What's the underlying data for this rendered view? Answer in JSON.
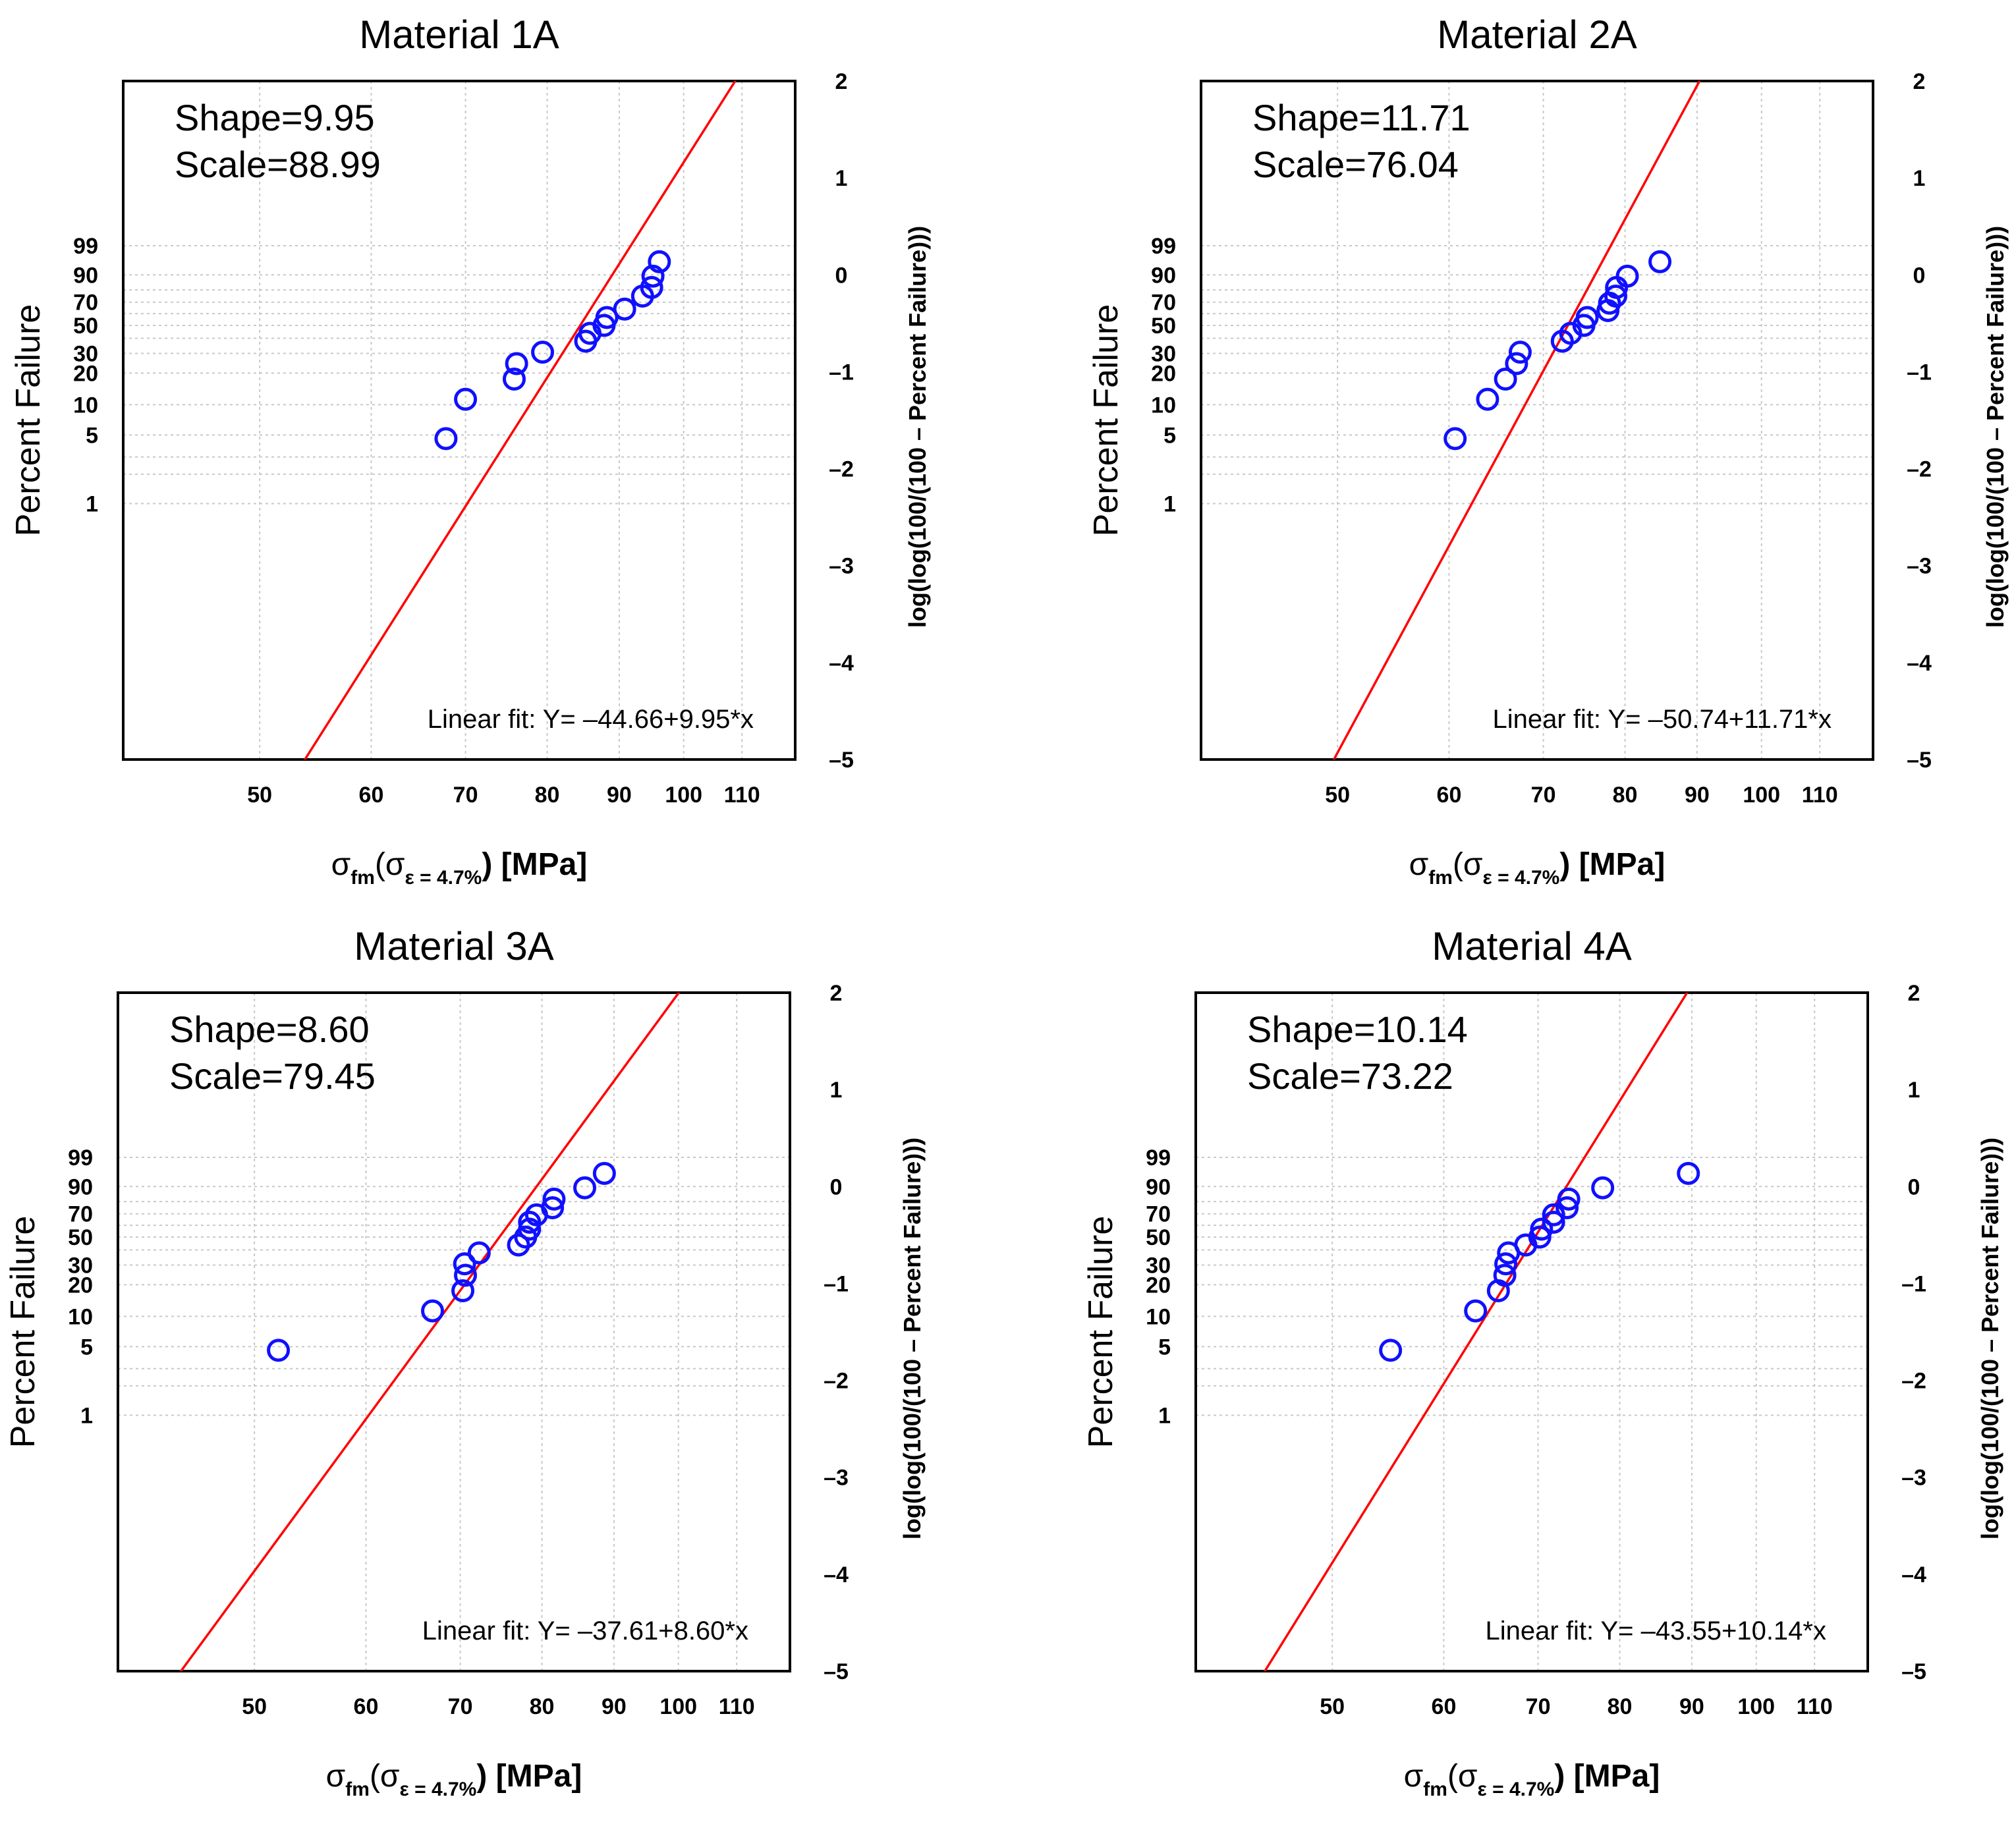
{
  "figure": {
    "y_left_label": "Percent Failure",
    "y_right_label": "log(log(100/(100 – Percent Failure)))",
    "x_label_main": "σ",
    "x_label_sub1": "fm",
    "x_label_paren_open": "(σ",
    "x_label_sub2": "ε = 4.7%",
    "x_label_close": ")",
    "x_label_unit": " [MPa]"
  },
  "chart_data": [
    {
      "type": "scatter",
      "title": "Material 1A",
      "shape_text": "Shape=9.95",
      "scale_text": "Scale=88.99",
      "fit_text": "Linear fit: Y= –44.66+9.95*x",
      "fit": {
        "intercept": -44.66,
        "slope": 9.95
      },
      "x_scale": "log10",
      "xlim": [
        40,
        120
      ],
      "x_ticks": [
        50,
        60,
        70,
        80,
        90,
        100,
        110
      ],
      "y_left_ticks": [
        1,
        5,
        10,
        20,
        30,
        50,
        70,
        90,
        99
      ],
      "y_right_ticks": [
        "2",
        "1",
        "0",
        "–1",
        "–2",
        "–3",
        "–4",
        "–5"
      ],
      "y_right_values": [
        2,
        1,
        0,
        -1,
        -2,
        -3,
        -4,
        -5
      ],
      "y_left_gridlines": [
        2,
        3,
        40,
        60,
        80
      ],
      "ylim_transformed": [
        -5,
        2
      ],
      "points": [
        [
          67.8,
          4.6
        ],
        [
          70.0,
          11.3
        ],
        [
          75.8,
          17.6
        ],
        [
          76.1,
          24.4
        ],
        [
          79.4,
          30.7
        ],
        [
          85.2,
          37.9
        ],
        [
          85.8,
          43.7
        ],
        [
          87.8,
          50.0
        ],
        [
          88.2,
          56.7
        ],
        [
          90.8,
          64.0
        ],
        [
          93.5,
          75.1
        ],
        [
          94.9,
          81.9
        ],
        [
          95.1,
          89.3
        ],
        [
          96.1,
          95.7
        ]
      ]
    },
    {
      "type": "scatter",
      "title": "Material 2A",
      "shape_text": "Shape=11.71",
      "scale_text": "Scale=76.04",
      "fit_text": "Linear fit: Y= –50.74+11.71*x",
      "fit": {
        "intercept": -50.74,
        "slope": 11.71
      },
      "x_scale": "log10",
      "xlim": [
        40,
        120
      ],
      "x_ticks": [
        50,
        60,
        70,
        80,
        90,
        100,
        110
      ],
      "y_left_ticks": [
        1,
        5,
        10,
        20,
        30,
        50,
        70,
        90,
        99
      ],
      "y_right_ticks": [
        "2",
        "1",
        "0",
        "–1",
        "–2",
        "–3",
        "–4",
        "–5"
      ],
      "y_right_values": [
        2,
        1,
        0,
        -1,
        -2,
        -3,
        -4,
        -5
      ],
      "y_left_gridlines": [
        2,
        3,
        40,
        60,
        80
      ],
      "ylim_transformed": [
        -5,
        2
      ],
      "points": [
        [
          60.6,
          4.6
        ],
        [
          63.9,
          11.3
        ],
        [
          65.8,
          17.6
        ],
        [
          67.0,
          24.4
        ],
        [
          67.4,
          30.7
        ],
        [
          72.2,
          37.9
        ],
        [
          73.2,
          43.7
        ],
        [
          74.8,
          50.0
        ],
        [
          75.2,
          56.7
        ],
        [
          77.8,
          62.7
        ],
        [
          78.0,
          69.1
        ],
        [
          78.8,
          75.1
        ],
        [
          78.9,
          81.9
        ],
        [
          80.3,
          89.3
        ],
        [
          84.7,
          95.7
        ]
      ]
    },
    {
      "type": "scatter",
      "title": "Material 3A",
      "shape_text": "Shape=8.60",
      "scale_text": "Scale=79.45",
      "fit_text": "Linear fit: Y= –37.61+8.60*x",
      "fit": {
        "intercept": -37.61,
        "slope": 8.6
      },
      "x_scale": "log10",
      "xlim": [
        40,
        120
      ],
      "x_ticks": [
        50,
        60,
        70,
        80,
        90,
        100,
        110
      ],
      "y_left_ticks": [
        1,
        5,
        10,
        20,
        30,
        50,
        70,
        90,
        99
      ],
      "y_right_ticks": [
        "2",
        "1",
        "0",
        "–1",
        "–2",
        "–3",
        "–4",
        "–5"
      ],
      "y_right_values": [
        2,
        1,
        0,
        -1,
        -2,
        -3,
        -4,
        -5
      ],
      "y_left_gridlines": [
        2,
        3,
        40,
        60,
        80
      ],
      "ylim_transformed": [
        -5,
        2
      ],
      "points": [
        [
          52.0,
          4.6
        ],
        [
          66.9,
          11.3
        ],
        [
          70.3,
          17.6
        ],
        [
          70.6,
          24.4
        ],
        [
          70.5,
          30.7
        ],
        [
          72.2,
          37.9
        ],
        [
          77.0,
          43.7
        ],
        [
          77.9,
          50.0
        ],
        [
          78.4,
          56.7
        ],
        [
          78.4,
          62.7
        ],
        [
          79.3,
          69.1
        ],
        [
          81.4,
          75.1
        ],
        [
          81.6,
          81.9
        ],
        [
          85.8,
          89.3
        ],
        [
          88.6,
          95.7
        ]
      ]
    },
    {
      "type": "scatter",
      "title": "Material 4A",
      "shape_text": "Shape=10.14",
      "scale_text": "Scale=73.22",
      "fit_text": "Linear fit: Y= –43.55+10.14*x",
      "fit": {
        "intercept": -43.55,
        "slope": 10.14
      },
      "x_scale": "log10",
      "xlim": [
        40,
        120
      ],
      "x_ticks": [
        50,
        60,
        70,
        80,
        90,
        100,
        110
      ],
      "y_left_ticks": [
        1,
        5,
        10,
        20,
        30,
        50,
        70,
        90,
        99
      ],
      "y_right_ticks": [
        "2",
        "1",
        "0",
        "–1",
        "–2",
        "–3",
        "–4",
        "–5"
      ],
      "y_right_values": [
        2,
        1,
        0,
        -1,
        -2,
        -3,
        -4,
        -5
      ],
      "y_left_gridlines": [
        2,
        3,
        40,
        60,
        80
      ],
      "ylim_transformed": [
        -5,
        2
      ],
      "points": [
        [
          55.0,
          4.6
        ],
        [
          63.2,
          11.3
        ],
        [
          65.6,
          17.6
        ],
        [
          66.3,
          24.4
        ],
        [
          66.4,
          30.7
        ],
        [
          66.7,
          37.9
        ],
        [
          68.6,
          43.7
        ],
        [
          70.2,
          50.0
        ],
        [
          70.4,
          56.7
        ],
        [
          71.8,
          62.7
        ],
        [
          71.8,
          69.1
        ],
        [
          73.4,
          75.1
        ],
        [
          73.6,
          81.9
        ],
        [
          77.8,
          89.3
        ],
        [
          89.5,
          95.7
        ]
      ]
    }
  ]
}
